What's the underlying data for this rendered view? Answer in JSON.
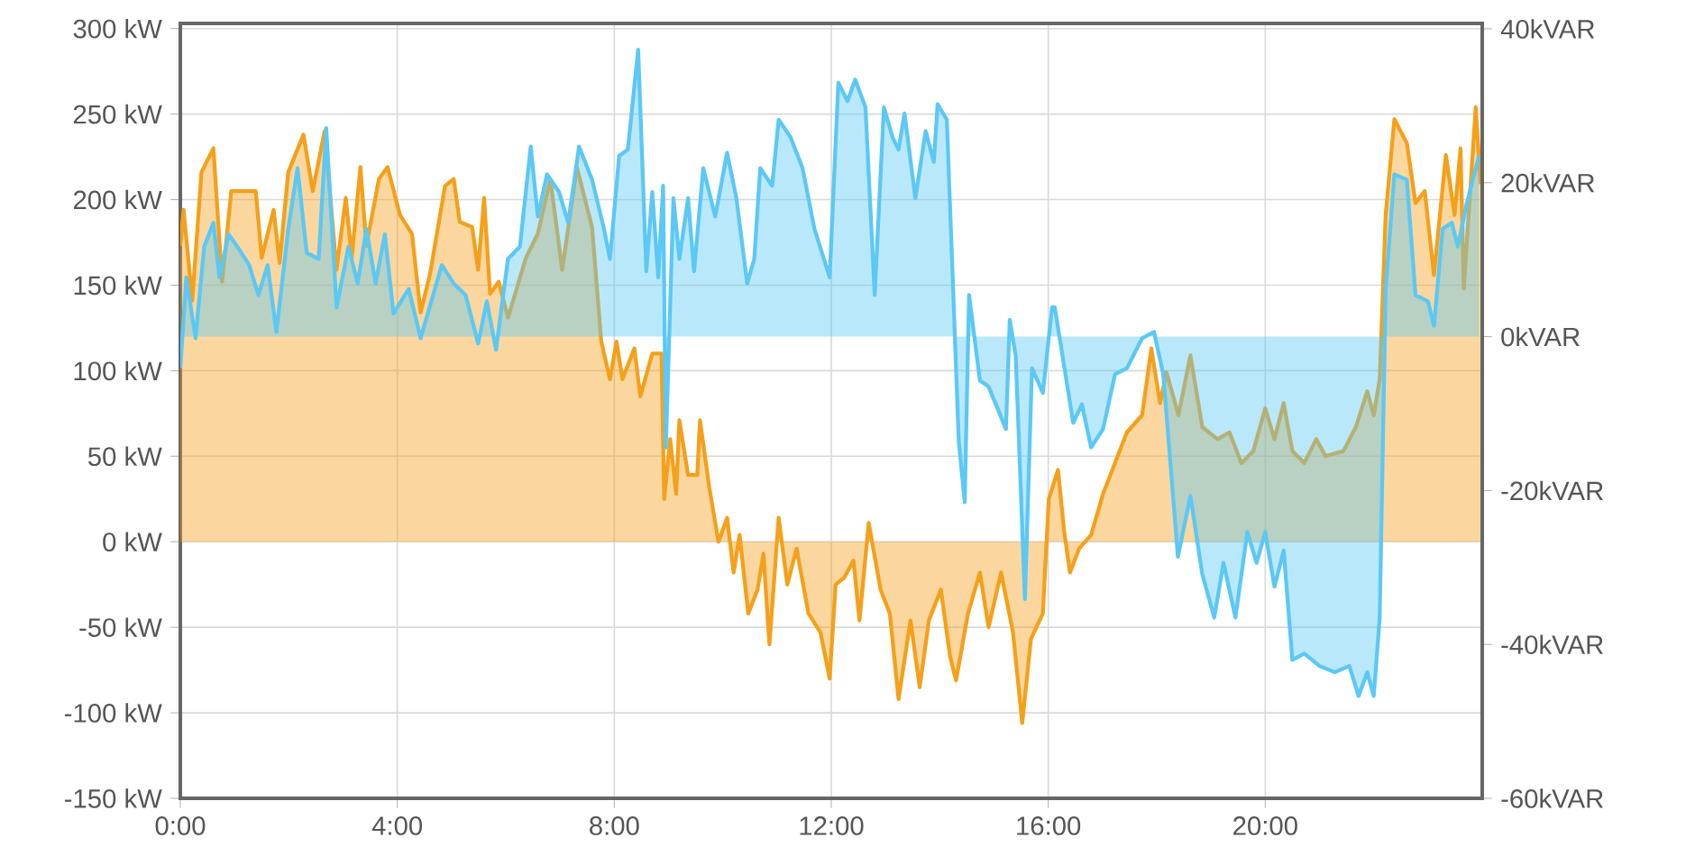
{
  "chart_data": {
    "type": "area",
    "xlim": [
      0,
      24
    ],
    "ylim": [
      -150,
      303
    ],
    "y2lim": [
      -60,
      40.7
    ],
    "grid": true,
    "xticks": [
      {
        "value": 0,
        "label": "0:00"
      },
      {
        "value": 4,
        "label": "4:00"
      },
      {
        "value": 8,
        "label": "8:00"
      },
      {
        "value": 12,
        "label": "12:00"
      },
      {
        "value": 16,
        "label": "16:00"
      },
      {
        "value": 20,
        "label": "20:00"
      }
    ],
    "yticks": [
      {
        "value": 300,
        "label": "300 kW"
      },
      {
        "value": 250,
        "label": "250 kW"
      },
      {
        "value": 200,
        "label": "200 kW"
      },
      {
        "value": 150,
        "label": "150 kW"
      },
      {
        "value": 100,
        "label": "100 kW"
      },
      {
        "value": 50,
        "label": "50 kW"
      },
      {
        "value": 0,
        "label": "0 kW"
      },
      {
        "value": -50,
        "label": "-50 kW"
      },
      {
        "value": -100,
        "label": "-100 kW"
      },
      {
        "value": -150,
        "label": "-150 kW"
      }
    ],
    "y2ticks": [
      {
        "value": 40,
        "label": "40kVAR"
      },
      {
        "value": 20,
        "label": "20kVAR"
      },
      {
        "value": 0,
        "label": "0kVAR"
      },
      {
        "value": -20,
        "label": "-20kVAR"
      },
      {
        "value": -40,
        "label": "-40kVAR"
      },
      {
        "value": -60,
        "label": "-60kVAR"
      }
    ],
    "series": [
      {
        "color": "#f5a01a",
        "x": [
          0.0,
          0.06,
          0.22,
          0.39,
          0.61,
          0.77,
          0.94,
          1.39,
          1.5,
          1.72,
          1.83,
          1.99,
          2.27,
          2.44,
          2.66,
          2.88,
          3.05,
          3.16,
          3.32,
          3.43,
          3.66,
          3.82,
          4.05,
          4.27,
          4.43,
          4.6,
          4.88,
          5.04,
          5.15,
          5.38,
          5.49,
          5.6,
          5.71,
          5.87,
          6.04,
          6.37,
          6.59,
          6.82,
          7.04,
          7.31,
          7.59,
          7.76,
          7.92,
          8.04,
          8.15,
          8.37,
          8.48,
          8.7,
          8.87,
          8.92,
          9.03,
          9.14,
          9.2,
          9.36,
          9.53,
          9.58,
          9.75,
          9.92,
          10.08,
          10.2,
          10.31,
          10.47,
          10.64,
          10.75,
          10.86,
          11.03,
          11.19,
          11.36,
          11.58,
          11.8,
          11.97,
          12.08,
          12.24,
          12.41,
          12.52,
          12.69,
          12.91,
          13.08,
          13.24,
          13.46,
          13.63,
          13.8,
          14.02,
          14.19,
          14.3,
          14.52,
          14.74,
          14.9,
          15.13,
          15.35,
          15.52,
          15.68,
          15.9,
          16.01,
          16.18,
          16.29,
          16.4,
          16.57,
          16.79,
          17.01,
          17.23,
          17.45,
          17.73,
          17.9,
          18.06,
          18.18,
          18.4,
          18.62,
          18.84,
          19.12,
          19.34,
          19.56,
          19.78,
          20.0,
          20.17,
          20.34,
          20.5,
          20.72,
          20.94,
          21.11,
          21.44,
          21.67,
          21.88,
          22.0,
          22.11,
          22.22,
          22.38,
          22.61,
          22.77,
          22.94,
          23.11,
          23.33,
          23.49,
          23.6,
          23.66,
          23.88,
          23.97
        ],
        "values": [
          173,
          194,
          141,
          216,
          230,
          152,
          205,
          205,
          166,
          194,
          163,
          216,
          238,
          205,
          240,
          159,
          201,
          166,
          219,
          173,
          212,
          219,
          191,
          180,
          134,
          156,
          208,
          212,
          187,
          184,
          159,
          201,
          145,
          152,
          131,
          166,
          180,
          212,
          159,
          219,
          184,
          117,
          95,
          117,
          95,
          113,
          85,
          110,
          110,
          25,
          60,
          28,
          71,
          39,
          39,
          71,
          32,
          0,
          14,
          -18,
          4,
          -42,
          -28,
          -7,
          -60,
          14,
          -25,
          -4,
          -42,
          -53,
          -80,
          -25,
          -21,
          -11,
          -46,
          11,
          -28,
          -42,
          -92,
          -46,
          -85,
          -46,
          -28,
          -67,
          -81,
          -42,
          -18,
          -50,
          -18,
          -53,
          -106,
          -57,
          -42,
          25,
          42,
          7,
          -18,
          -4,
          4,
          28,
          46,
          64,
          74,
          113,
          81,
          99,
          74,
          109,
          67,
          60,
          64,
          46,
          53,
          78,
          60,
          81,
          53,
          46,
          60,
          50,
          53,
          67,
          88,
          74,
          95,
          191,
          247,
          233,
          198,
          205,
          156,
          226,
          191,
          230,
          148,
          254,
          209
        ]
      },
      {
        "color": "#5bc8f5",
        "axis": "y2",
        "x": [
          0.0,
          0.11,
          0.28,
          0.44,
          0.61,
          0.72,
          0.89,
          1.05,
          1.27,
          1.44,
          1.61,
          1.77,
          1.99,
          2.16,
          2.33,
          2.55,
          2.69,
          2.88,
          3.1,
          3.27,
          3.43,
          3.6,
          3.77,
          3.93,
          4.21,
          4.43,
          4.82,
          5.04,
          5.26,
          5.49,
          5.65,
          5.82,
          6.04,
          6.26,
          6.46,
          6.59,
          6.76,
          6.98,
          7.15,
          7.35,
          7.59,
          7.81,
          7.92,
          8.09,
          8.25,
          8.44,
          8.59,
          8.7,
          8.81,
          8.9,
          8.95,
          9.09,
          9.2,
          9.36,
          9.47,
          9.64,
          9.86,
          10.08,
          10.25,
          10.45,
          10.58,
          10.69,
          10.91,
          11.03,
          11.25,
          11.47,
          11.69,
          11.97,
          12.13,
          12.3,
          12.44,
          12.63,
          12.8,
          12.97,
          13.13,
          13.24,
          13.35,
          13.55,
          13.74,
          13.89,
          13.96,
          14.13,
          14.35,
          14.46,
          14.54,
          14.74,
          14.9,
          15.22,
          15.29,
          15.4,
          15.57,
          15.7,
          15.9,
          16.07,
          16.12,
          16.46,
          16.62,
          16.79,
          17.01,
          17.23,
          17.45,
          17.73,
          17.95,
          18.12,
          18.39,
          18.62,
          18.84,
          19.06,
          19.23,
          19.45,
          19.67,
          19.84,
          20.0,
          20.17,
          20.34,
          20.5,
          20.72,
          21.0,
          21.28,
          21.55,
          21.72,
          21.88,
          22.0,
          22.11,
          22.22,
          22.38,
          22.61,
          22.77,
          23.0,
          23.11,
          23.27,
          23.44,
          23.55,
          23.71,
          23.94
        ],
        "values": [
          -4.1,
          7.7,
          -0.2,
          11.7,
          14.8,
          7.7,
          13.3,
          11.7,
          9.3,
          5.4,
          9.3,
          0.6,
          14.0,
          21.9,
          10.9,
          10.1,
          27.1,
          3.8,
          11.7,
          6.9,
          14.0,
          6.9,
          13.3,
          3.0,
          6.2,
          -0.2,
          9.3,
          6.9,
          5.4,
          -0.9,
          4.6,
          -1.7,
          10.1,
          11.7,
          24.7,
          15.6,
          21.1,
          18.8,
          14.8,
          24.7,
          20.4,
          14.0,
          10.1,
          23.5,
          24.3,
          37.3,
          8.5,
          18.8,
          7.7,
          19.6,
          -14.4,
          18.0,
          10.1,
          18.0,
          8.5,
          21.9,
          15.6,
          23.9,
          18.0,
          6.9,
          10.1,
          21.9,
          19.6,
          28.2,
          25.9,
          21.9,
          14.0,
          7.7,
          33.0,
          30.6,
          33.4,
          29.8,
          5.4,
          29.8,
          25.9,
          24.3,
          29.0,
          18.0,
          26.7,
          22.7,
          30.2,
          28.2,
          -13.6,
          -21.5,
          5.4,
          -5.7,
          -6.5,
          -12.0,
          2.2,
          -2.5,
          -34.1,
          -4.1,
          -7.3,
          3.8,
          3.8,
          -11.2,
          -8.8,
          -14.4,
          -12.0,
          -4.9,
          -4.1,
          -0.2,
          0.6,
          -4.9,
          -28.6,
          -20.7,
          -30.9,
          -36.5,
          -29.4,
          -36.5,
          -25.4,
          -29.4,
          -25.4,
          -32.5,
          -27.8,
          -42.0,
          -41.2,
          -42.8,
          -43.6,
          -42.8,
          -46.7,
          -43.6,
          -46.7,
          -36.5,
          6.2,
          21.1,
          20.4,
          5.4,
          4.6,
          1.4,
          14.0,
          14.8,
          11.7,
          17.2,
          23.5
        ]
      }
    ]
  }
}
